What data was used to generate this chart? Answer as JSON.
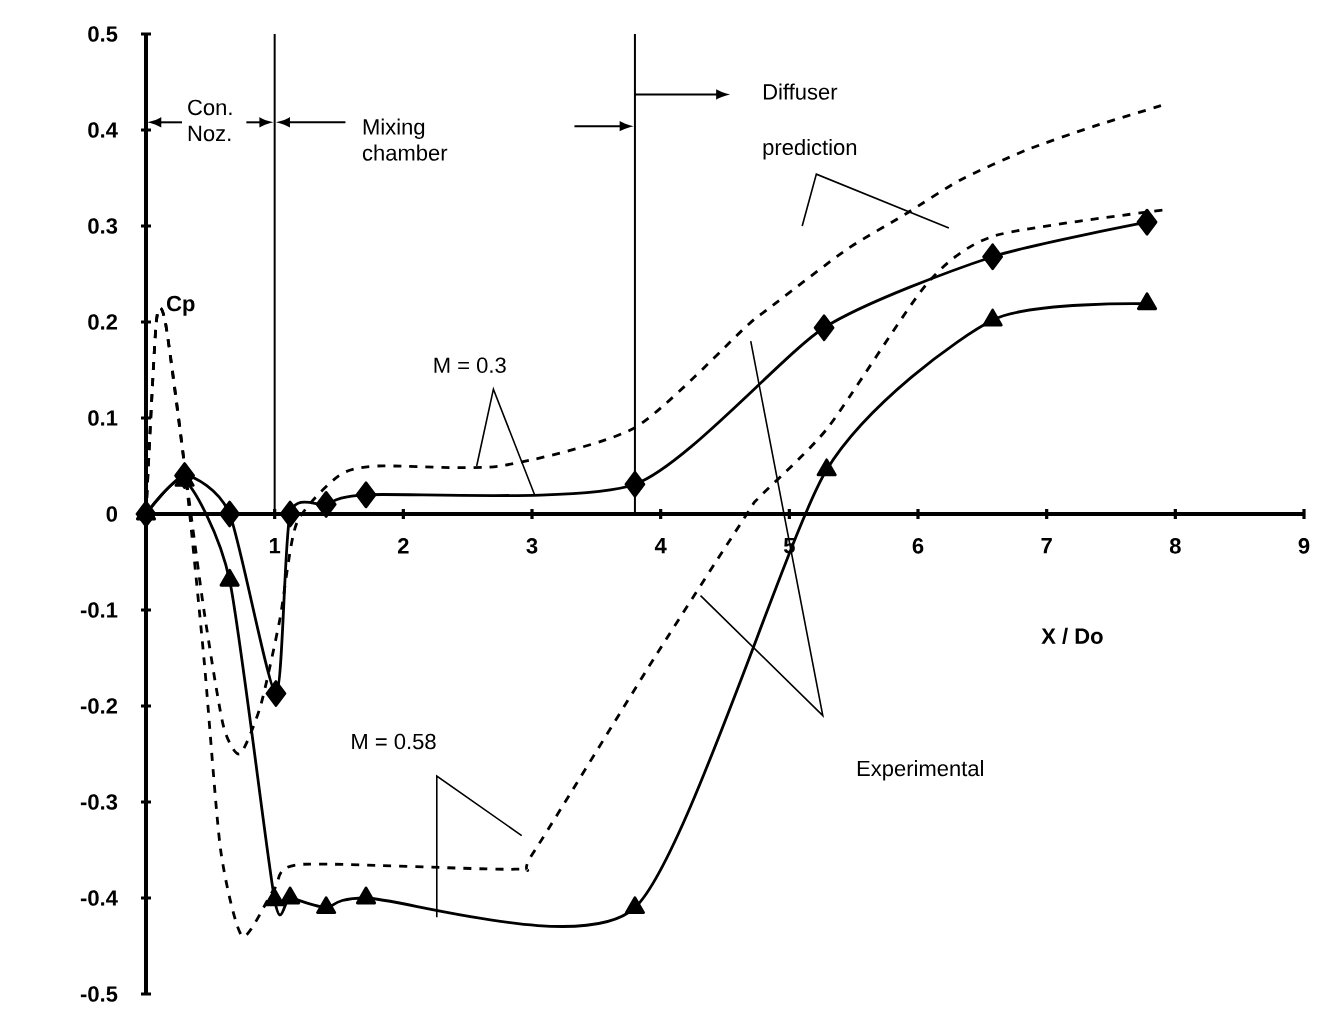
{
  "chart_data": {
    "type": "line",
    "xlabel": "X / Do",
    "ylabel": "Cp",
    "xlim": [
      0,
      9
    ],
    "ylim": [
      -0.5,
      0.5
    ],
    "xticks": [
      {
        "value": 0,
        "label": null
      },
      1,
      2,
      3,
      4,
      5,
      6,
      7,
      8,
      9
    ],
    "yticks": [
      -0.5,
      -0.4,
      -0.3,
      -0.2,
      -0.1,
      0,
      0.1,
      0.2,
      0.3,
      0.4,
      0.5
    ],
    "series": [
      {
        "color": "#000000",
        "marker": "diamond",
        "line_style": "solid",
        "x": [
          0,
          0.3,
          0.65,
          1.01,
          1.12,
          1.4,
          1.71,
          3.8,
          5.27,
          6.58,
          7.78
        ],
        "values": [
          0,
          0.04,
          0,
          -0.187,
          0,
          0.01,
          0.02,
          0.031,
          0.194,
          0.268,
          0.304
        ]
      },
      {
        "color": "#000000",
        "marker": "triangle",
        "line_style": "solid",
        "x": [
          0,
          0.3,
          0.65,
          1.0,
          1.12,
          1.4,
          1.71,
          3.8,
          5.29,
          6.58,
          7.78
        ],
        "values": [
          0,
          0.035,
          -0.069,
          -0.402,
          -0.4,
          -0.41,
          -0.4,
          -0.41,
          0.046,
          0.202,
          0.219
        ]
      },
      {
        "color": "#000000",
        "marker": "none",
        "line_style": "dashed",
        "x": [
          0,
          0.08,
          0.15,
          0.3,
          0.45,
          0.6,
          0.73,
          0.89,
          1.04,
          1.17,
          1.5,
          1.8,
          2.75,
          3.8,
          4.67,
          4.82,
          5.44,
          5.91,
          6.33,
          6.84,
          7.37,
          7.93
        ],
        "values": [
          0,
          0.2,
          0.2,
          0.05,
          -0.1,
          -0.22,
          -0.25,
          -0.2,
          -0.11,
          -0.01,
          0.04,
          0.05,
          0.05,
          0.09,
          0.196,
          0.212,
          0.275,
          0.313,
          0.348,
          0.379,
          0.404,
          0.427
        ]
      },
      {
        "color": "#000000",
        "marker": "none",
        "line_style": "dashed",
        "x": [
          0,
          0.08,
          0.15,
          0.3,
          0.45,
          0.58,
          0.75,
          1.0,
          1.2,
          2.87,
          3.0,
          3.95,
          4.67,
          4.77,
          5.3,
          6.07,
          6.6,
          7.93
        ],
        "values": [
          0,
          0.2,
          0.2,
          0.05,
          -0.15,
          -0.35,
          -0.44,
          -0.39,
          -0.365,
          -0.37,
          -0.355,
          -0.15,
          0.0,
          0.018,
          0.09,
          0.24,
          0.29,
          0.317
        ]
      }
    ],
    "ref_lines": [
      {
        "axis": "x",
        "value": 1
      },
      {
        "axis": "x",
        "value": 3.8
      }
    ],
    "annotations": [
      "Con. Noz.",
      "Mixing chamber",
      "Diffuser",
      "prediction",
      "M = 0.3",
      "M = 0.58",
      "Experimental"
    ]
  }
}
